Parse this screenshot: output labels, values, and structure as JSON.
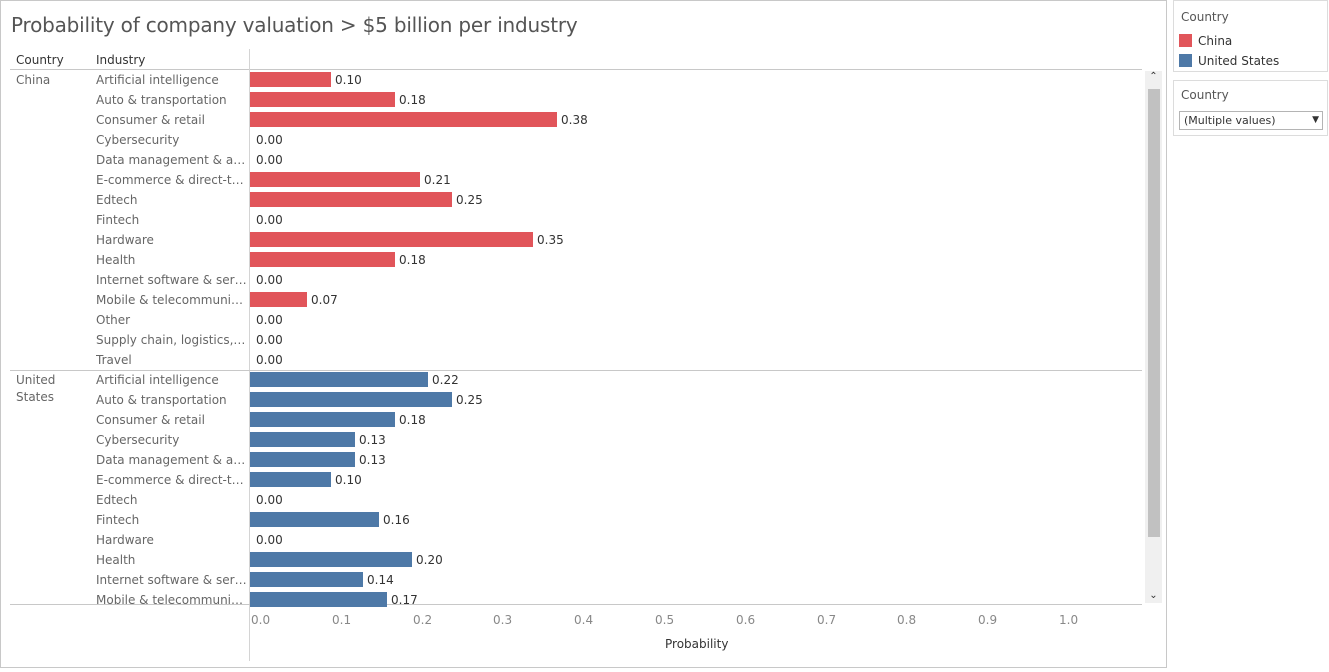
{
  "title": "Probability of  company valuation  >  $5 billion per industry",
  "headers": {
    "country": "Country",
    "industry": "Industry"
  },
  "colors": {
    "China": "#e1555a",
    "United States": "#4e79a7"
  },
  "chart_data": {
    "type": "bar",
    "orientation": "horizontal",
    "xlabel": "Probability",
    "xlim": [
      0,
      1.0
    ],
    "xticks": [
      "0.0",
      "0.1",
      "0.2",
      "0.3",
      "0.4",
      "0.5",
      "0.6",
      "0.7",
      "0.8",
      "0.9",
      "1.0"
    ],
    "groups": [
      {
        "name": "China",
        "label_lines": [
          "China"
        ],
        "rows": [
          {
            "industry": "Artificial intelligence",
            "value": 0.1,
            "label": "0.10"
          },
          {
            "industry": "Auto & transportation",
            "value": 0.18,
            "label": "0.18"
          },
          {
            "industry": "Consumer & retail",
            "value": 0.38,
            "label": "0.38"
          },
          {
            "industry": "Cybersecurity",
            "value": 0.0,
            "label": "0.00"
          },
          {
            "industry": "Data management & anal..",
            "value": 0.0,
            "label": "0.00"
          },
          {
            "industry": "E-commerce & direct-to-c..",
            "value": 0.21,
            "label": "0.21"
          },
          {
            "industry": "Edtech",
            "value": 0.25,
            "label": "0.25"
          },
          {
            "industry": "Fintech",
            "value": 0.0,
            "label": "0.00"
          },
          {
            "industry": "Hardware",
            "value": 0.35,
            "label": "0.35"
          },
          {
            "industry": "Health",
            "value": 0.18,
            "label": "0.18"
          },
          {
            "industry": "Internet software & servi..",
            "value": 0.0,
            "label": "0.00"
          },
          {
            "industry": "Mobile & telecommunicati..",
            "value": 0.07,
            "label": "0.07"
          },
          {
            "industry": "Other",
            "value": 0.0,
            "label": "0.00"
          },
          {
            "industry": "Supply chain, logistics, & ..",
            "value": 0.0,
            "label": "0.00"
          },
          {
            "industry": "Travel",
            "value": 0.0,
            "label": "0.00"
          }
        ]
      },
      {
        "name": "United States",
        "label_lines": [
          "United",
          "States"
        ],
        "rows": [
          {
            "industry": "Artificial intelligence",
            "value": 0.22,
            "label": "0.22"
          },
          {
            "industry": "Auto & transportation",
            "value": 0.25,
            "label": "0.25"
          },
          {
            "industry": "Consumer & retail",
            "value": 0.18,
            "label": "0.18"
          },
          {
            "industry": "Cybersecurity",
            "value": 0.13,
            "label": "0.13"
          },
          {
            "industry": "Data management & anal..",
            "value": 0.13,
            "label": "0.13"
          },
          {
            "industry": "E-commerce & direct-to-c..",
            "value": 0.1,
            "label": "0.10"
          },
          {
            "industry": "Edtech",
            "value": 0.0,
            "label": "0.00"
          },
          {
            "industry": "Fintech",
            "value": 0.16,
            "label": "0.16"
          },
          {
            "industry": "Hardware",
            "value": 0.0,
            "label": "0.00"
          },
          {
            "industry": "Health",
            "value": 0.2,
            "label": "0.20"
          },
          {
            "industry": "Internet software & servi..",
            "value": 0.14,
            "label": "0.14"
          },
          {
            "industry": "Mobile & telecommunicati..",
            "value": 0.17,
            "label": "0.17"
          }
        ]
      }
    ]
  },
  "legend": {
    "title": "Country",
    "items": [
      {
        "label": "China",
        "color": "#e1555a"
      },
      {
        "label": "United States",
        "color": "#4e79a7"
      }
    ]
  },
  "filter": {
    "title": "Country",
    "value": "(Multiple values)"
  },
  "scrollbar": {
    "up_icon": "chevron-up-icon",
    "down_icon": "chevron-down-icon"
  }
}
